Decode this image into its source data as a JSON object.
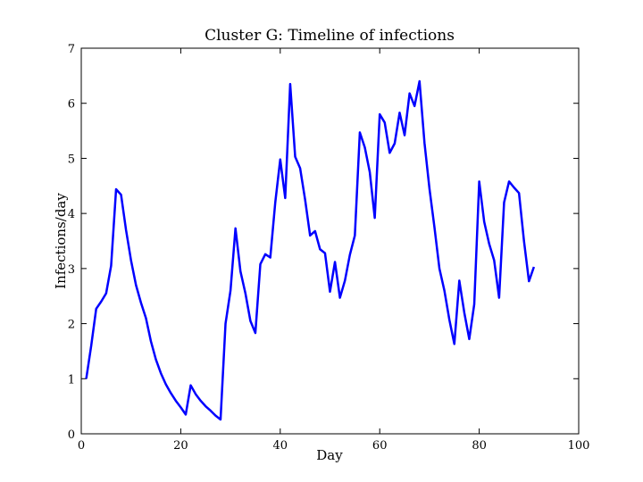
{
  "chart_data": {
    "type": "line",
    "title": "Cluster G: Timeline of infections",
    "x_label": "Day",
    "y_label": "Infections/day",
    "x": [
      1,
      2,
      3,
      4,
      5,
      6,
      7,
      8,
      9,
      10,
      11,
      12,
      13,
      14,
      15,
      16,
      17,
      18,
      19,
      20,
      21,
      22,
      23,
      24,
      25,
      26,
      27,
      28,
      29,
      30,
      31,
      32,
      33,
      34,
      35,
      36,
      37,
      38,
      39,
      40,
      41,
      42,
      43,
      44,
      45,
      46,
      47,
      48,
      49,
      50,
      51,
      52,
      53,
      54,
      55,
      56,
      57,
      58,
      59,
      60,
      61,
      62,
      63,
      64,
      65,
      66,
      67,
      68,
      69,
      70,
      71,
      72,
      73,
      74,
      75,
      76,
      77,
      78,
      79,
      80,
      81,
      82,
      83,
      84,
      85,
      86,
      87,
      88,
      89,
      90,
      91
    ],
    "series": [
      {
        "color": "#0000ff",
        "values": [
          1.0,
          1.6,
          2.27,
          2.4,
          2.55,
          3.05,
          4.44,
          4.34,
          3.7,
          3.15,
          2.7,
          2.38,
          2.1,
          1.68,
          1.35,
          1.1,
          0.9,
          0.74,
          0.6,
          0.48,
          0.35,
          0.88,
          0.72,
          0.6,
          0.5,
          0.42,
          0.33,
          0.26,
          2.0,
          2.6,
          3.73,
          2.95,
          2.55,
          2.05,
          1.83,
          3.08,
          3.26,
          3.2,
          4.2,
          4.98,
          4.28,
          6.35,
          5.03,
          4.82,
          4.25,
          3.6,
          3.68,
          3.35,
          3.28,
          2.58,
          3.12,
          2.47,
          2.78,
          3.25,
          3.6,
          5.47,
          5.2,
          4.75,
          3.92,
          5.8,
          5.65,
          5.1,
          5.27,
          5.83,
          5.42,
          6.18,
          5.95,
          6.4,
          5.28,
          4.45,
          3.75,
          3.0,
          2.6,
          2.07,
          1.63,
          2.78,
          2.2,
          1.72,
          2.35,
          4.58,
          3.85,
          3.45,
          3.15,
          2.47,
          4.2,
          4.58,
          4.47,
          4.37,
          3.5,
          2.77,
          3.03
        ]
      }
    ],
    "xlim": [
      0,
      100
    ],
    "ylim": [
      0,
      7
    ],
    "xticks": [
      0,
      20,
      40,
      60,
      80,
      100
    ],
    "yticks": [
      0,
      1,
      2,
      3,
      4,
      5,
      6,
      7
    ]
  }
}
